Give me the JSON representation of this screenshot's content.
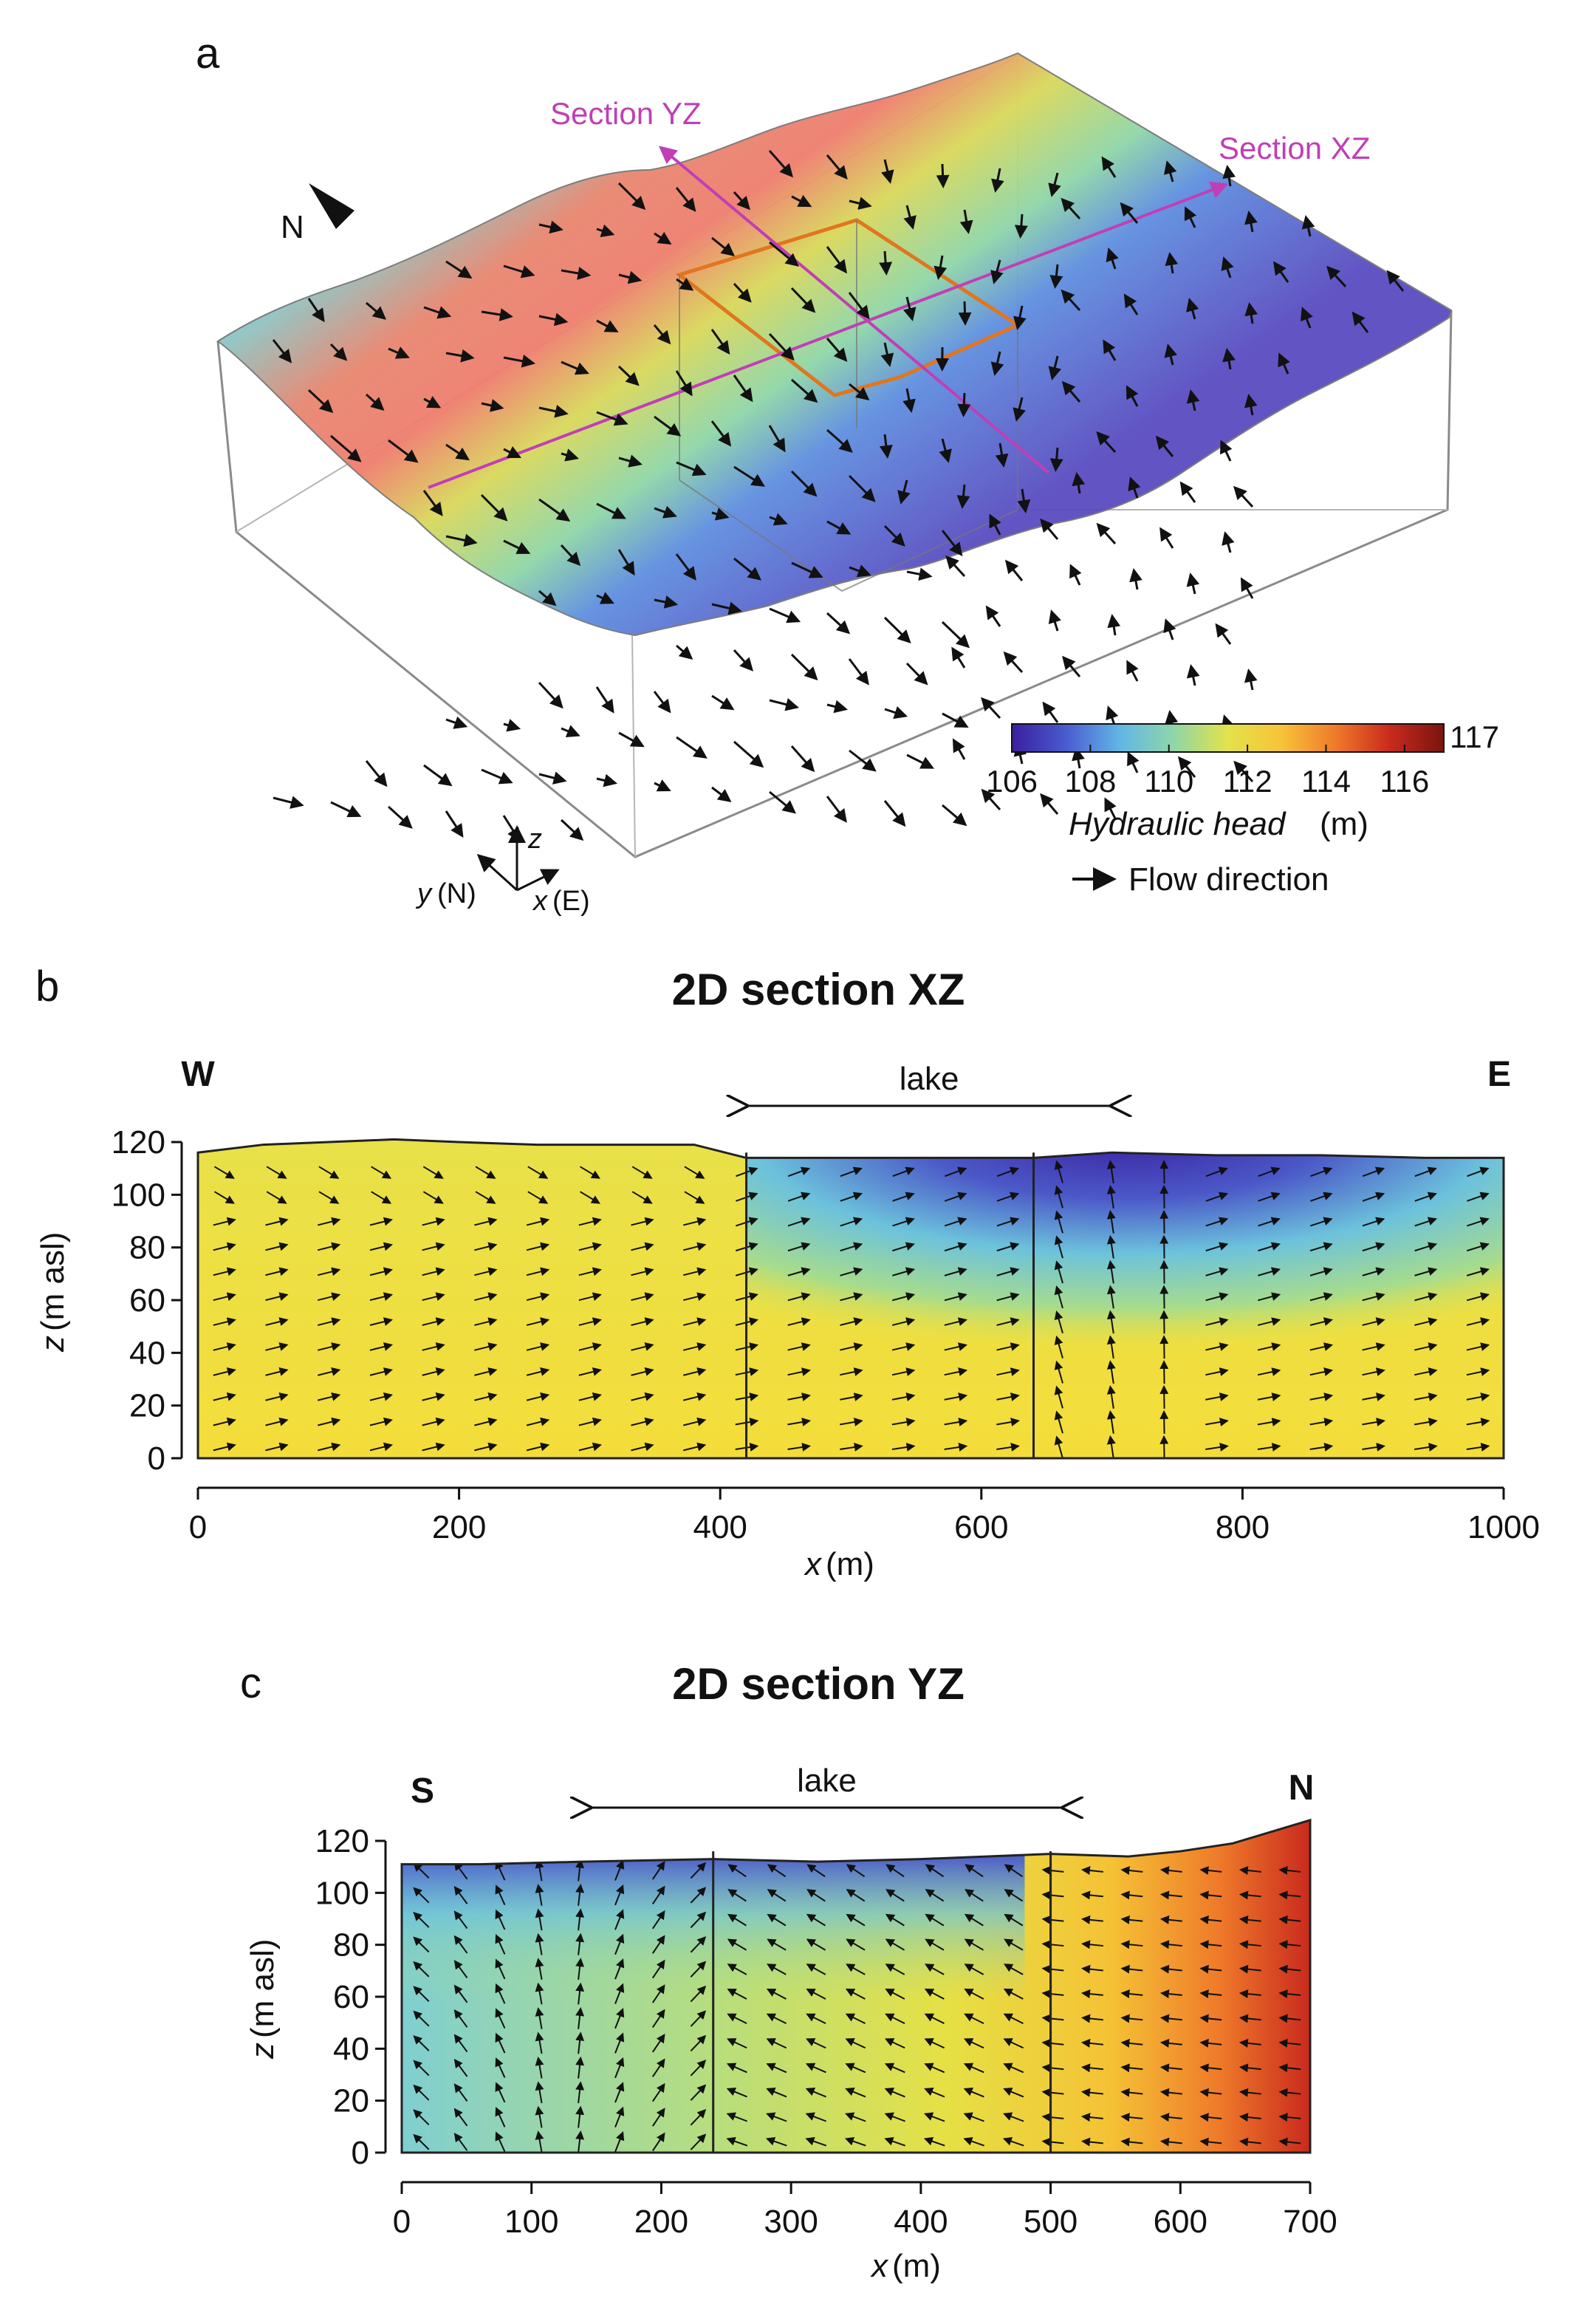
{
  "colors": {
    "background": "#ffffff",
    "section_line": "#c03fb6",
    "lake_outline": "#e0761e",
    "arrow": "#111111"
  },
  "chart_data": [
    {
      "panel": "a",
      "type": "3d-block-diagram",
      "labels": {
        "section_yz": "Section YZ",
        "section_xz": "Section XZ",
        "north": "N",
        "axis_z": "z",
        "axis_y": "y",
        "axis_y_suffix": "(N)",
        "axis_x": "x",
        "axis_x_suffix": "(E)",
        "flow_direction": "Flow direction"
      },
      "colorbar": {
        "label": "Hydraulic head",
        "unit": "(m)",
        "min": 106,
        "max": 117,
        "max_label": "117",
        "ticks": [
          "106",
          "108",
          "110",
          "112",
          "114",
          "116"
        ],
        "stops": [
          "#3a1f9e",
          "#4a5bd0",
          "#62b6e6",
          "#8fd6a8",
          "#e3e24a",
          "#f7c33a",
          "#ef7a2a",
          "#c92a1d",
          "#7a1410"
        ]
      },
      "surface_head_range_west_to_east": [
        117,
        106
      ]
    },
    {
      "panel": "b",
      "type": "heatmap",
      "title": "2D section XZ",
      "left_end": "W",
      "right_end": "E",
      "lake_label": "lake",
      "xlabel_var": "x",
      "xlabel_unit": "(m)",
      "ylabel_var": "z",
      "ylabel_unit": "(m asl)",
      "xlim": [
        0,
        1000
      ],
      "ylim": [
        0,
        120
      ],
      "x_ticks": [
        "0",
        "200",
        "400",
        "600",
        "800",
        "1000"
      ],
      "y_ticks": [
        "0",
        "20",
        "40",
        "60",
        "80",
        "100",
        "120"
      ],
      "lake_extent": [
        420,
        700
      ],
      "divider_lines_x": [
        420,
        640
      ],
      "surface_profile": {
        "x": [
          0,
          50,
          100,
          150,
          200,
          260,
          320,
          380,
          420,
          480,
          560,
          640,
          700,
          780,
          860,
          940,
          1000
        ],
        "z": [
          116,
          119,
          120,
          121,
          120,
          119,
          119,
          119,
          114,
          114,
          114,
          114,
          116,
          115,
          115,
          114,
          114
        ]
      },
      "head_field": "approx. 112 m at depth; lows of ~106 m beneath lake surface (x 420–1000)"
    },
    {
      "panel": "c",
      "type": "heatmap",
      "title": "2D section YZ",
      "left_end": "S",
      "right_end": "N",
      "lake_label": "lake",
      "xlabel_var": "x",
      "xlabel_unit": "(m)",
      "ylabel_var": "z",
      "ylabel_unit": "(m asl)",
      "xlim": [
        0,
        700
      ],
      "ylim": [
        0,
        120
      ],
      "x_ticks": [
        "0",
        "100",
        "200",
        "300",
        "400",
        "500",
        "600",
        "700"
      ],
      "y_ticks": [
        "0",
        "20",
        "40",
        "60",
        "80",
        "100",
        "120"
      ],
      "lake_extent": [
        145,
        510
      ],
      "divider_lines_x": [
        240,
        500
      ],
      "surface_profile": {
        "x": [
          0,
          60,
          140,
          240,
          320,
          400,
          500,
          560,
          600,
          640,
          680,
          700
        ],
        "z": [
          111,
          111,
          112,
          113,
          112,
          113,
          115,
          114,
          116,
          119,
          125,
          128
        ]
      },
      "head_field": "approx. 106 m near lake surface (x 0–440), rising to ~117 m toward N end"
    }
  ]
}
